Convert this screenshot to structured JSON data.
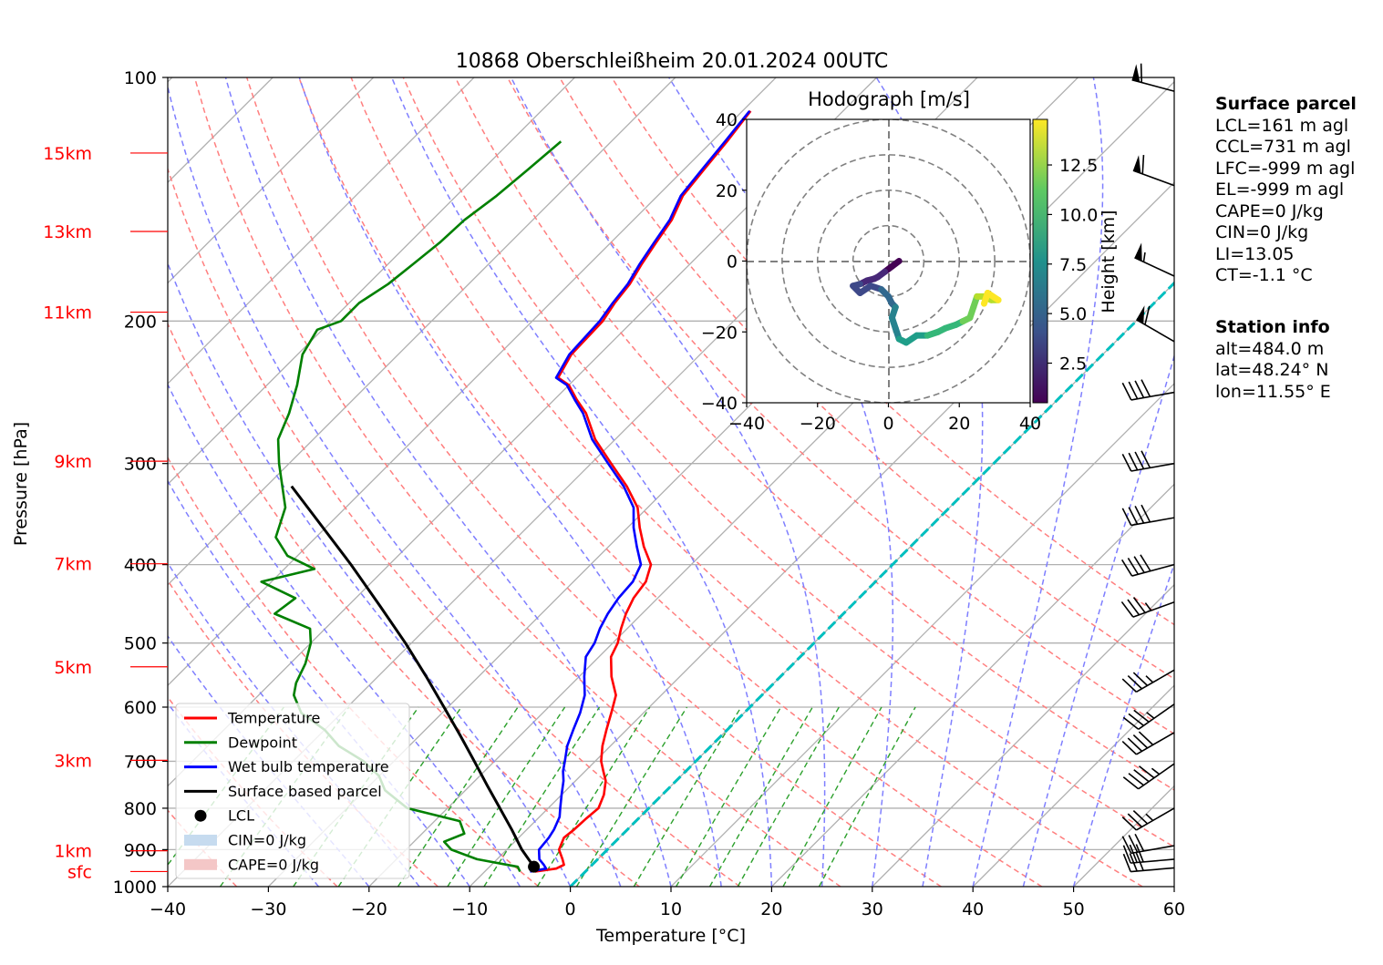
{
  "title": "10868 Oberschleißheim 20.01.2024 00UTC",
  "colors": {
    "temperature": "#ff0000",
    "dewpoint": "#008000",
    "wetbulb": "#0000ff",
    "parcel": "#000000",
    "isotherm_zero": "#00bfbf",
    "dry_adiabat": "#ff7f7f",
    "moist_adiabat": "#7f7fff",
    "mixing_ratio": "#2ca02c",
    "height_labels": "#ff0000"
  },
  "height_labels": [
    {
      "text": "15km",
      "p": 124
    },
    {
      "text": "13km",
      "p": 155
    },
    {
      "text": "11km",
      "p": 195
    },
    {
      "text": "9km",
      "p": 298
    },
    {
      "text": "7km",
      "p": 399
    },
    {
      "text": "5km",
      "p": 535
    },
    {
      "text": "3km",
      "p": 698
    },
    {
      "text": "1km",
      "p": 903
    },
    {
      "text": "sfc",
      "p": 958
    }
  ],
  "chart_data": {
    "type": "skew-t log-p",
    "xlabel": "Temperature [°C]",
    "ylabel": "Pressure [hPa]",
    "xlim": [
      -40,
      60
    ],
    "ylim": [
      1000,
      100
    ],
    "xticks": [
      "−40",
      "−30",
      "−20",
      "−10",
      "0",
      "10",
      "20",
      "30",
      "40",
      "50",
      "60"
    ],
    "yticks": [
      "100",
      "200",
      "300",
      "400",
      "500",
      "600",
      "700",
      "800",
      "900",
      "1000"
    ],
    "grid": true,
    "legend_position": "lower-left",
    "legend": [
      {
        "label": "Temperature",
        "kind": "line",
        "color": "#ff0000"
      },
      {
        "label": "Dewpoint",
        "kind": "line",
        "color": "#008000"
      },
      {
        "label": "Wet bulb temperature",
        "kind": "line",
        "color": "#0000ff"
      },
      {
        "label": "Surface based parcel",
        "kind": "line",
        "color": "#000000"
      },
      {
        "label": "LCL",
        "kind": "dot",
        "color": "#000000"
      },
      {
        "label": "CIN=0 J/kg",
        "kind": "patch",
        "color": "#c6dbef"
      },
      {
        "label": "CAPE=0 J/kg",
        "kind": "patch",
        "color": "#f4c7c7"
      }
    ],
    "series": [
      {
        "name": "Temperature",
        "points": [
          [
            958,
            -5.0
          ],
          [
            950,
            -3.2
          ],
          [
            940,
            -2.8
          ],
          [
            925,
            -3.5
          ],
          [
            900,
            -4.8
          ],
          [
            870,
            -5.5
          ],
          [
            850,
            -5.3
          ],
          [
            825,
            -5.2
          ],
          [
            800,
            -5.0
          ],
          [
            770,
            -5.8
          ],
          [
            740,
            -7.0
          ],
          [
            720,
            -8.2
          ],
          [
            700,
            -9.4
          ],
          [
            670,
            -10.8
          ],
          [
            640,
            -12.0
          ],
          [
            610,
            -13.2
          ],
          [
            580,
            -14.5
          ],
          [
            550,
            -16.8
          ],
          [
            520,
            -18.8
          ],
          [
            500,
            -19.5
          ],
          [
            480,
            -20.6
          ],
          [
            460,
            -21.6
          ],
          [
            440,
            -22.4
          ],
          [
            420,
            -22.8
          ],
          [
            400,
            -24.0
          ],
          [
            380,
            -26.5
          ],
          [
            360,
            -28.8
          ],
          [
            340,
            -31.0
          ],
          [
            320,
            -34.2
          ],
          [
            300,
            -38.0
          ],
          [
            280,
            -42.0
          ],
          [
            260,
            -45.5
          ],
          [
            250,
            -47.8
          ],
          [
            240,
            -50.0
          ],
          [
            235,
            -51.8
          ],
          [
            220,
            -52.8
          ],
          [
            200,
            -53.0
          ],
          [
            190,
            -53.6
          ],
          [
            180,
            -54.0
          ],
          [
            170,
            -54.8
          ],
          [
            160,
            -55.5
          ],
          [
            150,
            -56.2
          ],
          [
            140,
            -57.5
          ],
          [
            130,
            -58.0
          ],
          [
            120,
            -58.5
          ],
          [
            110,
            -59.2
          ]
        ]
      },
      {
        "name": "Dewpoint",
        "points": [
          [
            958,
            -6.5
          ],
          [
            945,
            -7.2
          ],
          [
            925,
            -12.0
          ],
          [
            900,
            -15.5
          ],
          [
            880,
            -17.0
          ],
          [
            860,
            -15.8
          ],
          [
            830,
            -17.5
          ],
          [
            800,
            -24.0
          ],
          [
            760,
            -28.0
          ],
          [
            730,
            -30.0
          ],
          [
            700,
            -33.0
          ],
          [
            670,
            -37.0
          ],
          [
            640,
            -40.0
          ],
          [
            610,
            -44.0
          ],
          [
            580,
            -46.5
          ],
          [
            560,
            -47.5
          ],
          [
            530,
            -48.5
          ],
          [
            500,
            -50.0
          ],
          [
            480,
            -51.5
          ],
          [
            460,
            -56.5
          ],
          [
            440,
            -56.0
          ],
          [
            420,
            -61.0
          ],
          [
            405,
            -57.0
          ],
          [
            390,
            -61.0
          ],
          [
            370,
            -64.0
          ],
          [
            340,
            -66.0
          ],
          [
            300,
            -71.0
          ],
          [
            280,
            -73.5
          ],
          [
            260,
            -75.0
          ],
          [
            240,
            -77.0
          ],
          [
            220,
            -79.5
          ],
          [
            205,
            -80.5
          ],
          [
            200,
            -79.0
          ],
          [
            190,
            -79.0
          ],
          [
            180,
            -78.0
          ],
          [
            170,
            -77.5
          ],
          [
            160,
            -77.0
          ],
          [
            150,
            -76.8
          ],
          [
            140,
            -76.0
          ],
          [
            130,
            -75.5
          ],
          [
            120,
            -75.0
          ]
        ]
      },
      {
        "name": "Wet bulb temperature",
        "points": [
          [
            958,
            -5.5
          ],
          [
            950,
            -4.2
          ],
          [
            940,
            -4.8
          ],
          [
            925,
            -5.8
          ],
          [
            900,
            -6.8
          ],
          [
            870,
            -7.0
          ],
          [
            850,
            -7.3
          ],
          [
            820,
            -8.0
          ],
          [
            800,
            -8.8
          ],
          [
            770,
            -10.0
          ],
          [
            740,
            -11.2
          ],
          [
            720,
            -12.2
          ],
          [
            700,
            -13.0
          ],
          [
            670,
            -14.3
          ],
          [
            640,
            -15.3
          ],
          [
            610,
            -16.3
          ],
          [
            580,
            -17.6
          ],
          [
            550,
            -19.5
          ],
          [
            520,
            -21.3
          ],
          [
            500,
            -21.8
          ],
          [
            480,
            -22.7
          ],
          [
            460,
            -23.4
          ],
          [
            440,
            -23.9
          ],
          [
            420,
            -24.1
          ],
          [
            400,
            -25.0
          ],
          [
            380,
            -27.2
          ],
          [
            360,
            -29.4
          ],
          [
            340,
            -31.4
          ],
          [
            320,
            -34.5
          ],
          [
            300,
            -38.3
          ],
          [
            280,
            -42.3
          ],
          [
            260,
            -45.8
          ],
          [
            250,
            -48.0
          ],
          [
            240,
            -50.2
          ],
          [
            235,
            -52.0
          ],
          [
            220,
            -53.0
          ],
          [
            200,
            -53.3
          ],
          [
            190,
            -53.8
          ],
          [
            180,
            -54.2
          ],
          [
            170,
            -55.0
          ],
          [
            160,
            -55.7
          ],
          [
            150,
            -56.4
          ],
          [
            140,
            -57.7
          ],
          [
            130,
            -58.2
          ],
          [
            120,
            -58.7
          ],
          [
            110,
            -59.3
          ]
        ]
      },
      {
        "name": "Surface based parcel",
        "points": [
          [
            958,
            -5.0
          ],
          [
            945,
            -5.6
          ],
          [
            900,
            -8.5
          ],
          [
            850,
            -11.5
          ],
          [
            800,
            -14.8
          ],
          [
            750,
            -18.3
          ],
          [
            700,
            -22.0
          ],
          [
            650,
            -26.0
          ],
          [
            600,
            -30.4
          ],
          [
            550,
            -35.2
          ],
          [
            500,
            -40.6
          ],
          [
            450,
            -46.8
          ],
          [
            400,
            -53.8
          ],
          [
            350,
            -62.0
          ],
          [
            320,
            -67.5
          ]
        ]
      }
    ],
    "lcl": {
      "p": 945,
      "t": -5.6
    },
    "reference_lines": {
      "zero_isotherm": 0,
      "dry_adiabats_theta_K": [
        230,
        240,
        250,
        260,
        270,
        280,
        290,
        300,
        310,
        320,
        330,
        340,
        350,
        360,
        370,
        380
      ],
      "moist_adiabats_start_C": [
        -25,
        -20,
        -15,
        -10,
        -5,
        0,
        5,
        10,
        15,
        20,
        25,
        30,
        35,
        40,
        45,
        50
      ],
      "mixing_ratios_gkg": [
        0.1,
        0.2,
        0.4,
        0.6,
        1,
        1.5,
        2,
        3,
        4,
        6,
        8,
        10,
        12,
        16,
        20
      ]
    },
    "wind_barbs": [
      {
        "p": 948,
        "dir": 265,
        "speed_kt": 30
      },
      {
        "p": 925,
        "dir": 265,
        "speed_kt": 30
      },
      {
        "p": 890,
        "dir": 260,
        "speed_kt": 30
      },
      {
        "p": 800,
        "dir": 240,
        "speed_kt": 35
      },
      {
        "p": 705,
        "dir": 235,
        "speed_kt": 45
      },
      {
        "p": 645,
        "dir": 240,
        "speed_kt": 40
      },
      {
        "p": 595,
        "dir": 235,
        "speed_kt": 35
      },
      {
        "p": 540,
        "dir": 240,
        "speed_kt": 35
      },
      {
        "p": 445,
        "dir": 250,
        "speed_kt": 35
      },
      {
        "p": 400,
        "dir": 255,
        "speed_kt": 40
      },
      {
        "p": 350,
        "dir": 260,
        "speed_kt": 40
      },
      {
        "p": 300,
        "dir": 260,
        "speed_kt": 40
      },
      {
        "p": 245,
        "dir": 260,
        "speed_kt": 40
      },
      {
        "p": 212,
        "dir": 300,
        "speed_kt": 60
      },
      {
        "p": 176,
        "dir": 295,
        "speed_kt": 55
      },
      {
        "p": 136,
        "dir": 290,
        "speed_kt": 60
      },
      {
        "p": 104,
        "dir": 285,
        "speed_kt": 60
      }
    ],
    "hodograph": {
      "title": "Hodograph [m/s]",
      "xlim": [
        -40,
        40
      ],
      "ylim": [
        -40,
        40
      ],
      "ticks": [
        "−40",
        "−20",
        "0",
        "20",
        "40"
      ],
      "rings": [
        10,
        20,
        30,
        40
      ],
      "colorbar_label": "Height [km]",
      "colorbar_ticks": [
        "2.5",
        "5.0",
        "7.5",
        "10.0",
        "12.5"
      ],
      "colorbar_range": [
        0.5,
        14.8
      ],
      "colormap": "viridis",
      "points": [
        {
          "h": 0.5,
          "u": 3,
          "v": 0
        },
        {
          "h": 0.8,
          "u": 1,
          "v": -1.5
        },
        {
          "h": 1.2,
          "u": -1,
          "v": -3
        },
        {
          "h": 1.6,
          "u": -3,
          "v": -4.5
        },
        {
          "h": 2.0,
          "u": -4,
          "v": -5
        },
        {
          "h": 2.4,
          "u": -6,
          "v": -5.5
        },
        {
          "h": 2.8,
          "u": -8,
          "v": -6.5
        },
        {
          "h": 3.2,
          "u": -10,
          "v": -7
        },
        {
          "h": 3.6,
          "u": -8,
          "v": -9
        },
        {
          "h": 4.0,
          "u": -5,
          "v": -7
        },
        {
          "h": 4.5,
          "u": -2,
          "v": -8
        },
        {
          "h": 5.0,
          "u": 0,
          "v": -10
        },
        {
          "h": 5.5,
          "u": 1,
          "v": -12
        },
        {
          "h": 6.0,
          "u": 2,
          "v": -13
        },
        {
          "h": 6.5,
          "u": 1,
          "v": -16
        },
        {
          "h": 7.0,
          "u": 2,
          "v": -19
        },
        {
          "h": 7.5,
          "u": 3,
          "v": -22
        },
        {
          "h": 8.0,
          "u": 5,
          "v": -23
        },
        {
          "h": 8.5,
          "u": 8,
          "v": -21
        },
        {
          "h": 9.0,
          "u": 11,
          "v": -21
        },
        {
          "h": 9.5,
          "u": 14,
          "v": -20
        },
        {
          "h": 10.0,
          "u": 16,
          "v": -19
        },
        {
          "h": 10.5,
          "u": 19,
          "v": -18
        },
        {
          "h": 11.0,
          "u": 21,
          "v": -17
        },
        {
          "h": 11.5,
          "u": 23,
          "v": -16
        },
        {
          "h": 12.0,
          "u": 24,
          "v": -13
        },
        {
          "h": 12.5,
          "u": 25,
          "v": -10
        },
        {
          "h": 13.0,
          "u": 27,
          "v": -10
        },
        {
          "h": 13.5,
          "u": 29,
          "v": -11
        },
        {
          "h": 14.0,
          "u": 31,
          "v": -11
        },
        {
          "h": 14.5,
          "u": 28,
          "v": -9
        },
        {
          "h": 14.8,
          "u": 27,
          "v": -12
        }
      ]
    }
  },
  "surface_parcel": {
    "heading": "Surface parcel",
    "lines": [
      "LCL=161 m agl",
      "CCL=731 m agl",
      "LFC=-999 m agl",
      "EL=-999 m agl",
      "CAPE=0 J/kg",
      "CIN=0 J/kg",
      "LI=13.05",
      "CT=-1.1 °C"
    ]
  },
  "station_info": {
    "heading": "Station info",
    "lines": [
      "alt=484.0 m",
      "lat=48.24° N",
      "lon=11.55° E"
    ]
  }
}
